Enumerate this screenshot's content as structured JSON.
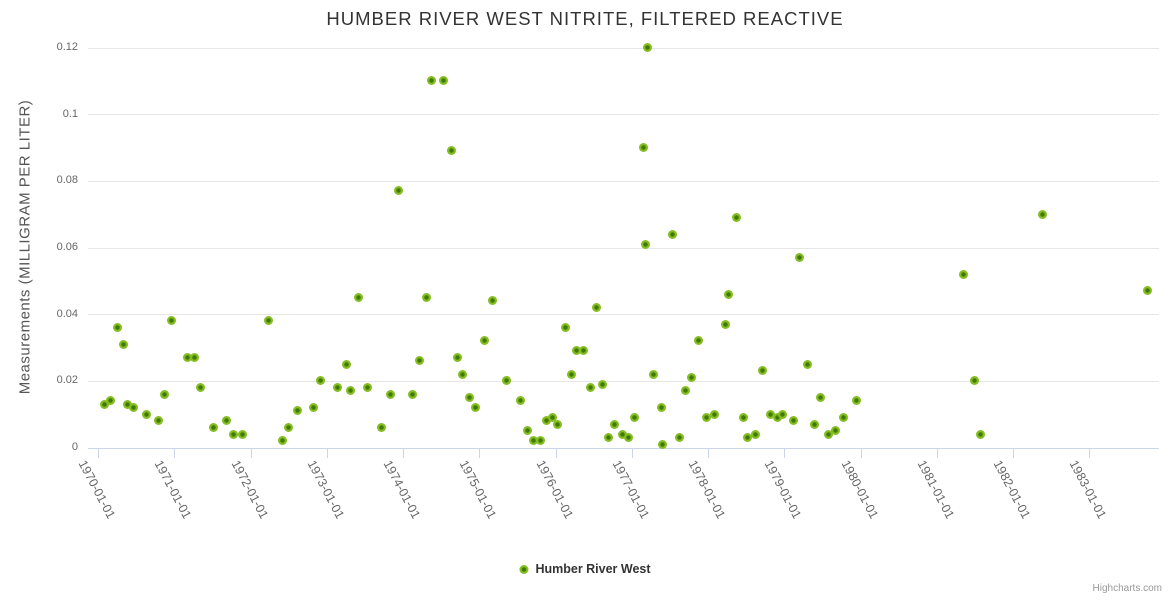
{
  "title": "HUMBER RIVER WEST NITRITE, FILTERED REACTIVE",
  "y_axis": {
    "title": "Measurements (MILLIGRAM PER LITER)",
    "ticks": [
      0,
      0.02,
      0.04,
      0.06,
      0.08,
      0.1,
      0.12
    ],
    "tick_labels": [
      "0",
      "0.02",
      "0.04",
      "0.06",
      "0.08",
      "0.1",
      "0.12"
    ]
  },
  "x_axis": {
    "labels": [
      "1970-01-01",
      "1971-01-01",
      "1972-01-01",
      "1973-01-01",
      "1974-01-01",
      "1975-01-01",
      "1976-01-01",
      "1977-01-01",
      "1978-01-01",
      "1979-01-01",
      "1980-01-01",
      "1981-01-01",
      "1982-01-01",
      "1983-01-01"
    ]
  },
  "legend": {
    "label": "Humber River West"
  },
  "credits": "Highcharts.com",
  "colors": {
    "series_green": "#84bd22",
    "marker_core": "#417a04",
    "grid": "#e6e6e6",
    "axis_line": "#ccd6eb",
    "title_text": "#333333",
    "axis_text": "#666666",
    "credits_text": "#999999"
  },
  "chart_data": {
    "type": "scatter",
    "title": "HUMBER RIVER WEST NITRITE, FILTERED REACTIVE",
    "xlabel": "",
    "ylabel": "Measurements (MILLIGRAM PER LITER)",
    "ylim": [
      0,
      0.12
    ],
    "xlim_years": [
      1969.85,
      1984.0
    ],
    "grid": "horizontal gridlines only",
    "legend_position": "bottom-center",
    "x_unit": "decimal year (dates estimated from axis, samples roughly monthly)",
    "series": [
      {
        "name": "Humber River West",
        "color": "#84bd22",
        "points": [
          [
            1970.08,
            0.013
          ],
          [
            1970.16,
            0.014
          ],
          [
            1970.26,
            0.036
          ],
          [
            1970.33,
            0.031
          ],
          [
            1970.39,
            0.013
          ],
          [
            1970.47,
            0.012
          ],
          [
            1970.64,
            0.01
          ],
          [
            1970.79,
            0.008
          ],
          [
            1970.87,
            0.016
          ],
          [
            1970.97,
            0.038
          ],
          [
            1971.18,
            0.027
          ],
          [
            1971.26,
            0.027
          ],
          [
            1971.34,
            0.018
          ],
          [
            1971.51,
            0.006
          ],
          [
            1971.69,
            0.008
          ],
          [
            1971.78,
            0.004
          ],
          [
            1971.89,
            0.004
          ],
          [
            1972.24,
            0.038
          ],
          [
            1972.42,
            0.002
          ],
          [
            1972.5,
            0.006
          ],
          [
            1972.62,
            0.011
          ],
          [
            1972.82,
            0.012
          ],
          [
            1972.92,
            0.02
          ],
          [
            1973.14,
            0.018
          ],
          [
            1973.26,
            0.025
          ],
          [
            1973.31,
            0.017
          ],
          [
            1973.42,
            0.045
          ],
          [
            1973.54,
            0.018
          ],
          [
            1973.72,
            0.006
          ],
          [
            1973.84,
            0.016
          ],
          [
            1973.94,
            0.077
          ],
          [
            1974.12,
            0.016
          ],
          [
            1974.22,
            0.026
          ],
          [
            1974.31,
            0.045
          ],
          [
            1974.38,
            0.11
          ],
          [
            1974.53,
            0.11
          ],
          [
            1974.63,
            0.089
          ],
          [
            1974.71,
            0.027
          ],
          [
            1974.78,
            0.022
          ],
          [
            1974.87,
            0.015
          ],
          [
            1974.95,
            0.012
          ],
          [
            1975.07,
            0.032
          ],
          [
            1975.17,
            0.044
          ],
          [
            1975.36,
            0.02
          ],
          [
            1975.54,
            0.014
          ],
          [
            1975.63,
            0.005
          ],
          [
            1975.71,
            0.002
          ],
          [
            1975.8,
            0.002
          ],
          [
            1975.88,
            0.008
          ],
          [
            1975.96,
            0.009
          ],
          [
            1976.03,
            0.007
          ],
          [
            1976.13,
            0.036
          ],
          [
            1976.21,
            0.022
          ],
          [
            1976.28,
            0.029
          ],
          [
            1976.37,
            0.029
          ],
          [
            1976.46,
            0.018
          ],
          [
            1976.54,
            0.042
          ],
          [
            1976.61,
            0.019
          ],
          [
            1976.7,
            0.003
          ],
          [
            1976.78,
            0.007
          ],
          [
            1976.88,
            0.004
          ],
          [
            1976.96,
            0.003
          ],
          [
            1977.04,
            0.009
          ],
          [
            1977.15,
            0.09
          ],
          [
            1977.18,
            0.061
          ],
          [
            1977.2,
            0.12
          ],
          [
            1977.28,
            0.022
          ],
          [
            1977.39,
            0.012
          ],
          [
            1977.4,
            0.001
          ],
          [
            1977.53,
            0.064
          ],
          [
            1977.62,
            0.003
          ],
          [
            1977.7,
            0.017
          ],
          [
            1977.79,
            0.021
          ],
          [
            1977.88,
            0.032
          ],
          [
            1977.98,
            0.009
          ],
          [
            1978.08,
            0.01
          ],
          [
            1978.23,
            0.037
          ],
          [
            1978.27,
            0.046
          ],
          [
            1978.38,
            0.069
          ],
          [
            1978.47,
            0.009
          ],
          [
            1978.52,
            0.003
          ],
          [
            1978.62,
            0.004
          ],
          [
            1978.71,
            0.023
          ],
          [
            1978.82,
            0.01
          ],
          [
            1978.91,
            0.009
          ],
          [
            1978.98,
            0.01
          ],
          [
            1979.12,
            0.008
          ],
          [
            1979.2,
            0.057
          ],
          [
            1979.31,
            0.025
          ],
          [
            1979.4,
            0.007
          ],
          [
            1979.48,
            0.015
          ],
          [
            1979.58,
            0.004
          ],
          [
            1979.67,
            0.005
          ],
          [
            1979.78,
            0.009
          ],
          [
            1979.95,
            0.014
          ],
          [
            1981.35,
            0.052
          ],
          [
            1981.49,
            0.02
          ],
          [
            1981.57,
            0.004
          ],
          [
            1982.39,
            0.07
          ],
          [
            1983.77,
            0.047
          ]
        ]
      }
    ]
  }
}
